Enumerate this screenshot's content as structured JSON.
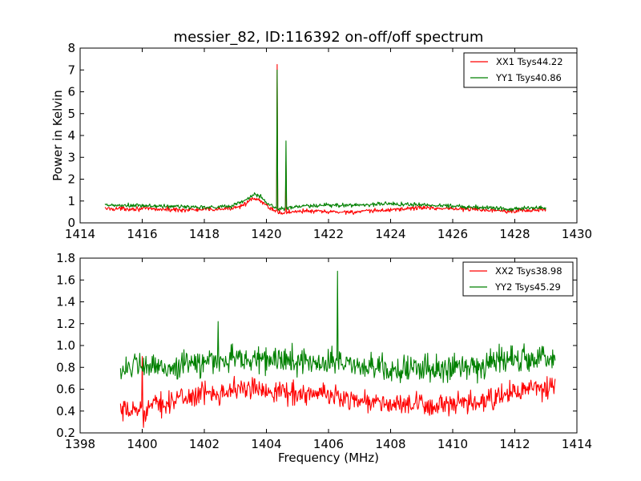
{
  "title": "messier_82, ID:116392 on-off/off spectrum",
  "colors": {
    "xx": "#ff0000",
    "yy": "#008000",
    "axes": "#000000",
    "background": "#ffffff"
  },
  "chart_data": [
    {
      "type": "line",
      "title": "messier_82, ID:116392 on-off/off spectrum",
      "xlabel": "",
      "ylabel": "Power in Kelvin",
      "xlim": [
        1414,
        1430
      ],
      "ylim": [
        0,
        8
      ],
      "xticks": [
        1414,
        1416,
        1418,
        1420,
        1422,
        1424,
        1426,
        1428,
        1430
      ],
      "yticks": [
        0,
        1,
        2,
        3,
        4,
        5,
        6,
        7,
        8
      ],
      "grid": false,
      "legend_position": "top-right",
      "x_range": [
        1414.8,
        1429.0
      ],
      "series": [
        {
          "name": "XX1 Tsys44.22",
          "color": "#ff0000",
          "noise": 0.05,
          "points": [
            [
              1414.8,
              0.65
            ],
            [
              1416.0,
              0.65
            ],
            [
              1417.0,
              0.6
            ],
            [
              1418.0,
              0.6
            ],
            [
              1418.8,
              0.65
            ],
            [
              1419.2,
              0.8
            ],
            [
              1419.6,
              1.1
            ],
            [
              1419.8,
              1.0
            ],
            [
              1420.1,
              0.7
            ],
            [
              1420.3,
              0.55
            ],
            [
              1420.4,
              0.45
            ],
            [
              1420.6,
              0.45
            ],
            [
              1421.0,
              0.55
            ],
            [
              1422.0,
              0.5
            ],
            [
              1423.0,
              0.5
            ],
            [
              1424.0,
              0.6
            ],
            [
              1425.0,
              0.7
            ],
            [
              1426.0,
              0.65
            ],
            [
              1427.0,
              0.6
            ],
            [
              1428.0,
              0.55
            ],
            [
              1429.0,
              0.6
            ]
          ],
          "peaks": [
            {
              "x": 1420.35,
              "y": 7.25
            },
            {
              "x": 1420.63,
              "y": 2.8
            }
          ]
        },
        {
          "name": "YY1 Tsys40.86",
          "color": "#008000",
          "noise": 0.05,
          "points": [
            [
              1414.8,
              0.8
            ],
            [
              1416.0,
              0.78
            ],
            [
              1417.0,
              0.75
            ],
            [
              1418.0,
              0.72
            ],
            [
              1418.8,
              0.75
            ],
            [
              1419.2,
              0.95
            ],
            [
              1419.6,
              1.3
            ],
            [
              1419.8,
              1.2
            ],
            [
              1420.1,
              0.85
            ],
            [
              1420.3,
              0.65
            ],
            [
              1420.4,
              0.65
            ],
            [
              1420.6,
              0.65
            ],
            [
              1421.0,
              0.75
            ],
            [
              1422.0,
              0.8
            ],
            [
              1423.0,
              0.82
            ],
            [
              1424.0,
              0.88
            ],
            [
              1425.0,
              0.82
            ],
            [
              1426.0,
              0.78
            ],
            [
              1427.0,
              0.7
            ],
            [
              1428.0,
              0.65
            ],
            [
              1429.0,
              0.7
            ]
          ],
          "peaks": [
            {
              "x": 1420.35,
              "y": 7.0
            },
            {
              "x": 1420.63,
              "y": 3.75
            }
          ]
        }
      ]
    },
    {
      "type": "line",
      "title": "",
      "xlabel": "Frequency (MHz)",
      "ylabel": "",
      "xlim": [
        1398,
        1414
      ],
      "ylim": [
        0.2,
        1.8
      ],
      "xticks": [
        1398,
        1400,
        1402,
        1404,
        1406,
        1408,
        1410,
        1412,
        1414
      ],
      "yticks": [
        0.2,
        0.4,
        0.6,
        0.8,
        1.0,
        1.2,
        1.4,
        1.6,
        1.8
      ],
      "ytick_labels": [
        "0.2",
        "0.4",
        "0.6",
        "0.8",
        "1.0",
        "1.2",
        "1.4",
        "1.6",
        "1.8"
      ],
      "grid": false,
      "legend_position": "top-right",
      "x_range": [
        1399.3,
        1413.3
      ],
      "series": [
        {
          "name": "XX2 Tsys38.98",
          "color": "#ff0000",
          "noise": 0.05,
          "points": [
            [
              1399.3,
              0.38
            ],
            [
              1400.0,
              0.42
            ],
            [
              1401.0,
              0.5
            ],
            [
              1402.0,
              0.56
            ],
            [
              1403.0,
              0.6
            ],
            [
              1404.0,
              0.6
            ],
            [
              1405.0,
              0.56
            ],
            [
              1406.0,
              0.55
            ],
            [
              1407.0,
              0.5
            ],
            [
              1408.0,
              0.46
            ],
            [
              1409.0,
              0.45
            ],
            [
              1410.0,
              0.45
            ],
            [
              1411.0,
              0.48
            ],
            [
              1412.0,
              0.58
            ],
            [
              1413.3,
              0.62
            ]
          ],
          "peaks": [
            {
              "x": 1400.0,
              "y": 0.9
            },
            {
              "x": 1400.05,
              "y": 0.25
            }
          ]
        },
        {
          "name": "YY2 Tsys45.29",
          "color": "#008000",
          "noise": 0.06,
          "points": [
            [
              1399.3,
              0.8
            ],
            [
              1400.0,
              0.8
            ],
            [
              1401.0,
              0.8
            ],
            [
              1402.0,
              0.85
            ],
            [
              1403.0,
              0.88
            ],
            [
              1404.0,
              0.87
            ],
            [
              1405.0,
              0.86
            ],
            [
              1406.0,
              0.85
            ],
            [
              1407.0,
              0.82
            ],
            [
              1408.0,
              0.78
            ],
            [
              1409.0,
              0.78
            ],
            [
              1410.0,
              0.8
            ],
            [
              1411.0,
              0.84
            ],
            [
              1412.0,
              0.88
            ],
            [
              1413.3,
              0.9
            ]
          ],
          "peaks": [
            {
              "x": 1402.45,
              "y": 1.22
            },
            {
              "x": 1406.3,
              "y": 1.68
            }
          ]
        }
      ]
    }
  ]
}
